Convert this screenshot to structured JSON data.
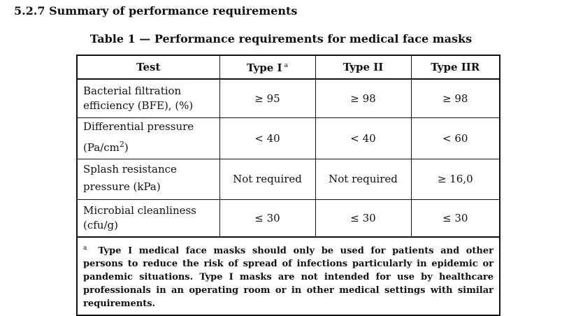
{
  "section": {
    "heading": "5.2.7 Summary of performance requirements"
  },
  "table": {
    "caption": "Table 1 — Performance requirements for medical face masks",
    "headers": {
      "test": "Test",
      "type1": "Type I",
      "type1_footnote": "a",
      "type2": "Type II",
      "type3": "Type IIR"
    },
    "rows": [
      {
        "test_line1": "Bacterial filtration",
        "test_line2": "efficiency (BFE), (%)",
        "type1": "≥ 95",
        "type2": "≥ 98",
        "type3": "≥ 98"
      },
      {
        "test_line1": "Differential pressure",
        "test_line2": "(Pa/cm",
        "test_sup": "2",
        "test_close": ")",
        "type1": "< 40",
        "type2": "< 40",
        "type3": "< 60"
      },
      {
        "test_line1": "Splash resistance",
        "test_line2": "pressure (kPa)",
        "type1": "Not required",
        "type2": "Not required",
        "type3": "≥ 16,0"
      },
      {
        "test_line1": "Microbial cleanliness",
        "test_line2": "(cfu/g)",
        "type1": "≤ 30",
        "type2": "≤ 30",
        "type3": "≤ 30"
      }
    ],
    "footnote": {
      "marker": "a",
      "text": "Type I medical face masks should only be used for patients and other persons to reduce the risk of spread of infections particularly in epidemic or pandemic situations. Type I masks are not intended for use by healthcare professionals in an operating room or in other medical settings with similar requirements."
    }
  }
}
